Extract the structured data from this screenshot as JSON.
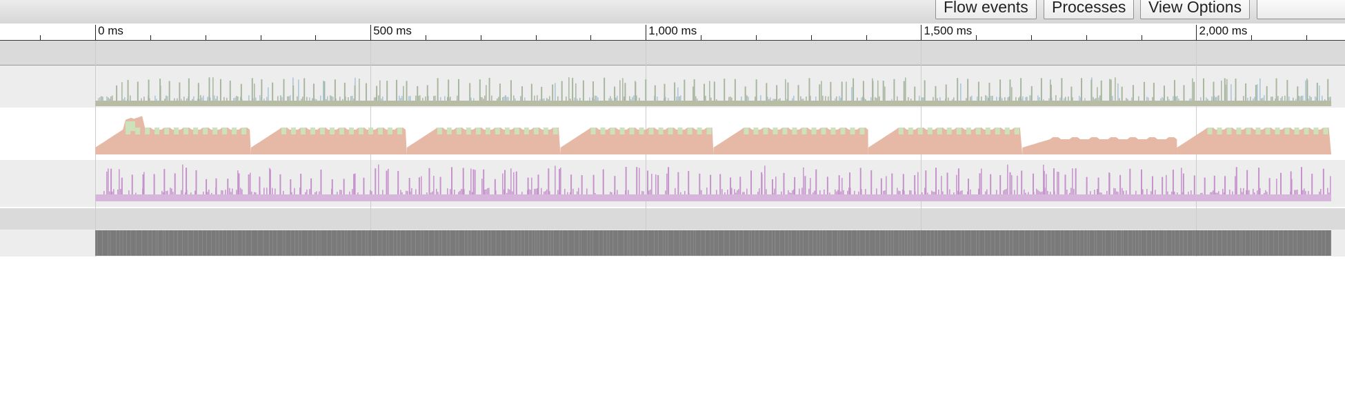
{
  "toolbar": {
    "buttons": [
      {
        "key": "flow",
        "label": "Flow events"
      },
      {
        "key": "processes",
        "label": "Processes"
      },
      {
        "key": "view",
        "label": "View Options"
      }
    ]
  },
  "timeline": {
    "ticks": [
      {
        "value": 0,
        "label": "0 ms"
      },
      {
        "value": 500,
        "label": "500 ms"
      },
      {
        "value": 1000,
        "label": "1,000 ms"
      },
      {
        "value": 1500,
        "label": "1,500 ms"
      },
      {
        "value": 2000,
        "label": "2,000 ms"
      }
    ],
    "range_ms": [
      -173,
      2270
    ],
    "trace_end_ms": 2245
  },
  "colors": {
    "ruler_bg": "#ffffff",
    "header_band": "#dadada",
    "row_alt_bg": "#ededed",
    "counter_base": "#b8bca4",
    "counter_spike_green": "#a8b6a0",
    "counter_spike_blue": "#a7c4d6",
    "sawtooth_fill": "#e6b9a6",
    "sawtooth_top": "#cde2ba",
    "purple_fill": "#d7b6dc",
    "purple_spike": "#c592cc",
    "slice_gray": "#7a7a7a",
    "gridline": "#cccccc"
  }
}
